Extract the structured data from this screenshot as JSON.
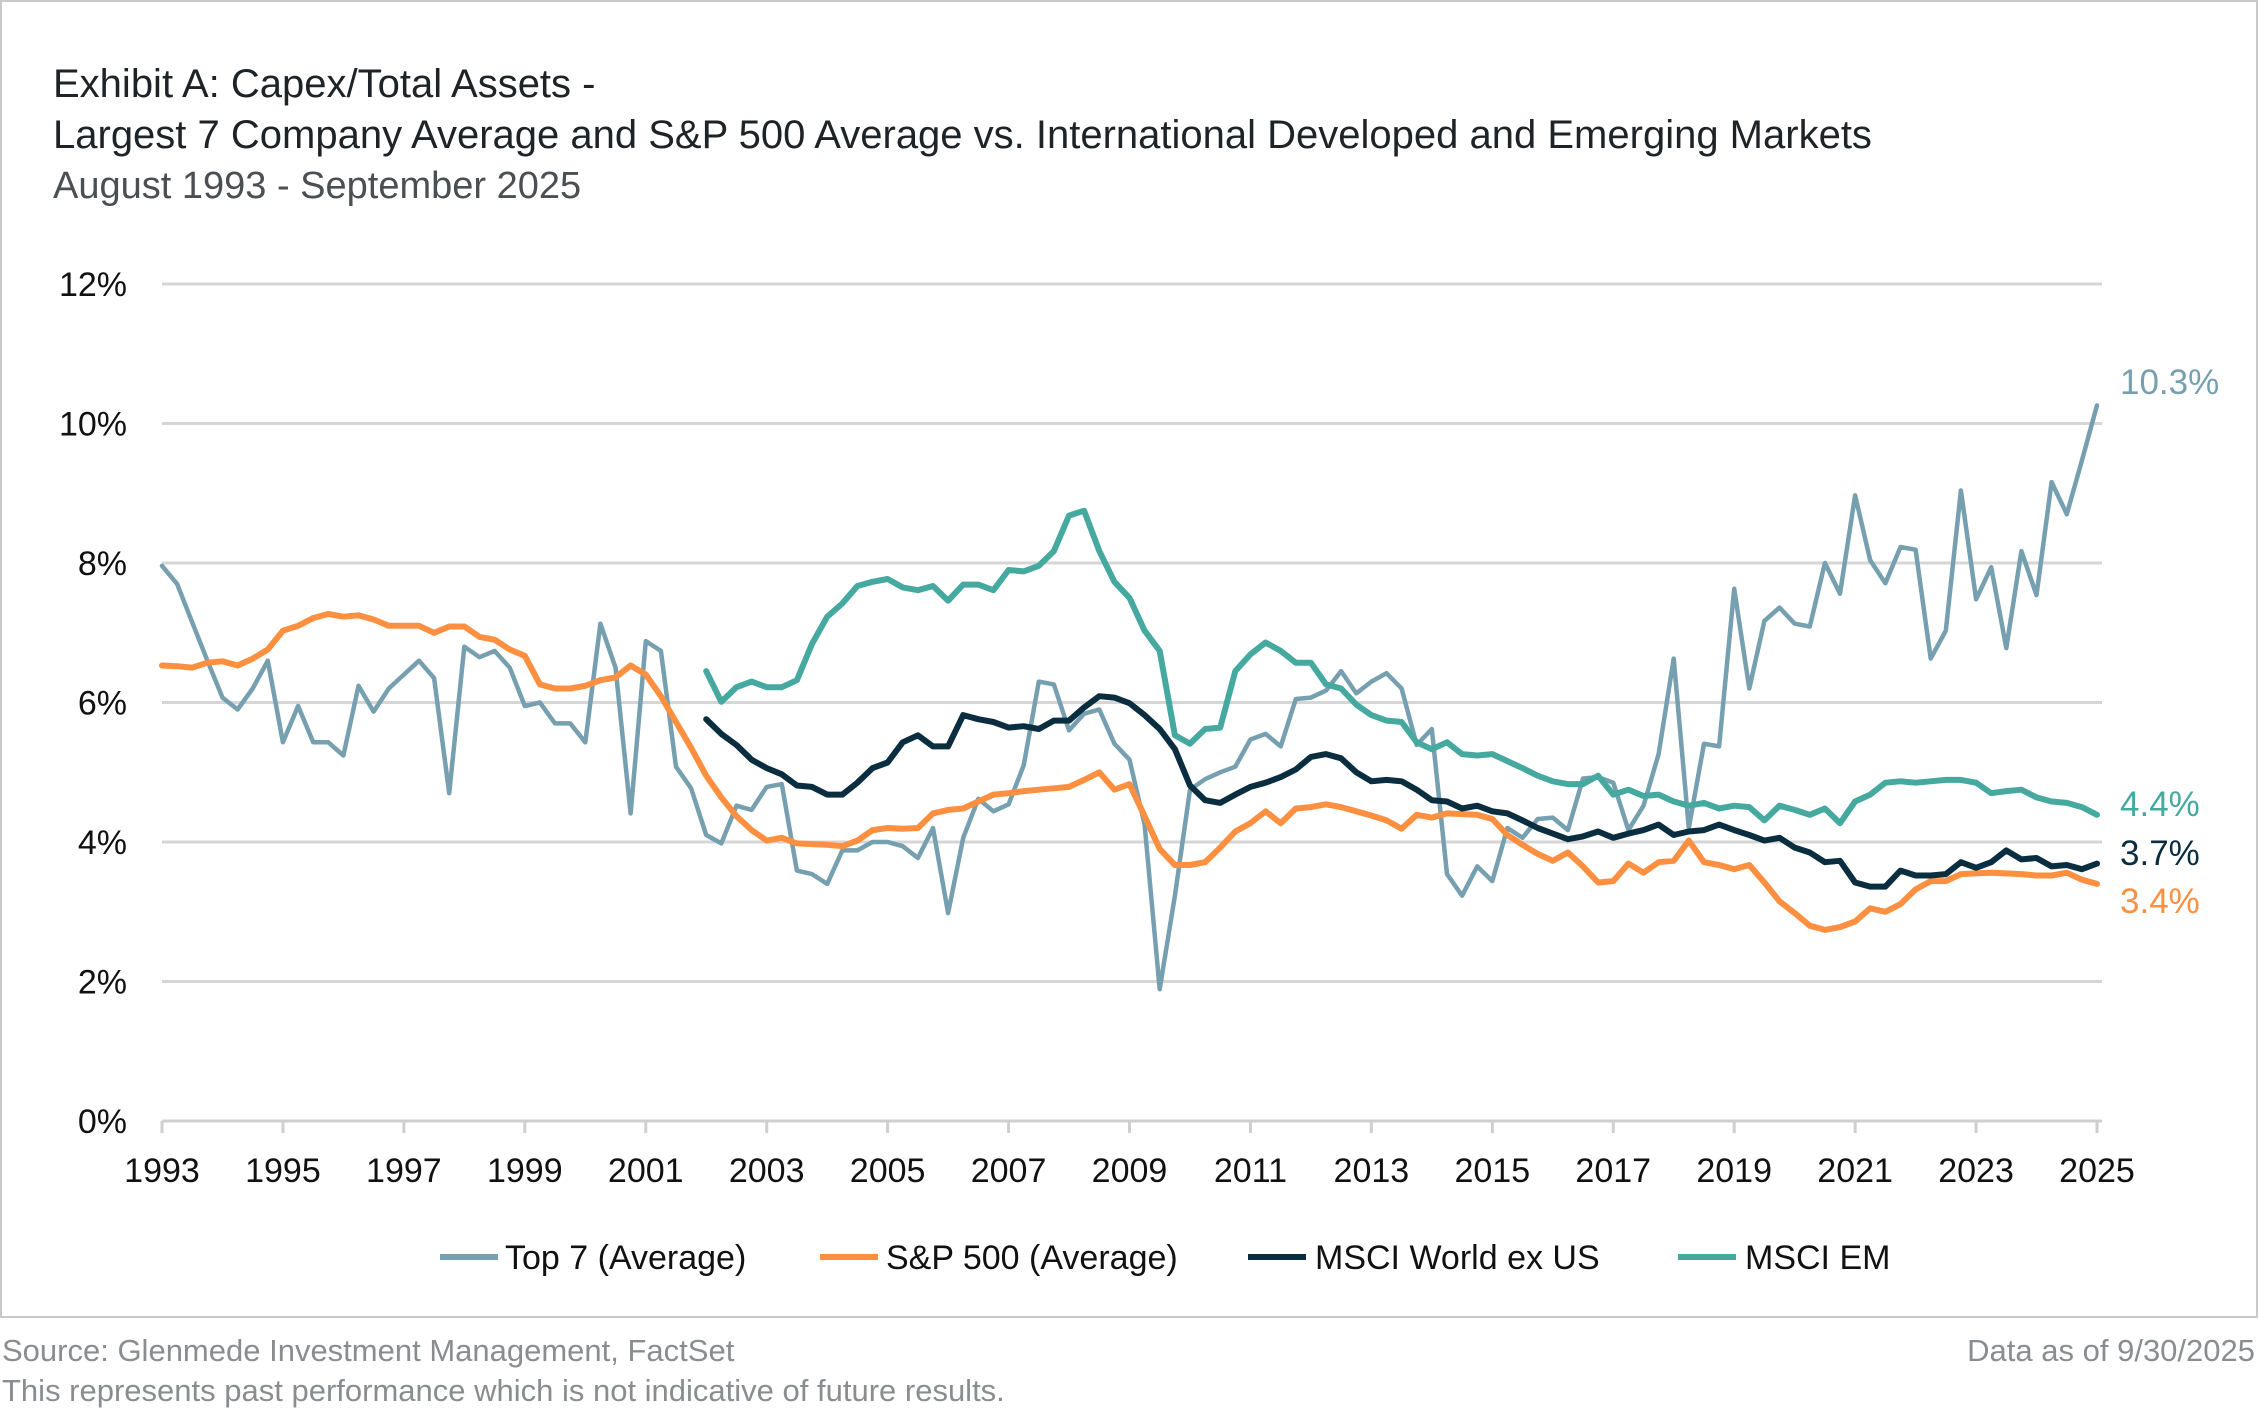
{
  "header": {
    "title_line1": "Exhibit A:  Capex/Total Assets -",
    "title_line2": "Largest 7 Company Average and S&P 500 Average vs. International Developed and Emerging Markets",
    "period": "August 1993 - September 2025"
  },
  "footer": {
    "source": "Source: Glenmede Investment Management, FactSet",
    "disclaimer": "This represents past performance which is not indicative of future results.",
    "data_as_of": "Data as of 9/30/2025"
  },
  "chart_data": {
    "type": "line",
    "title": "Capex/Total Assets",
    "xlabel": "",
    "ylabel": "",
    "frequency": "quarterly",
    "xlim": [
      1993,
      2025
    ],
    "ylim": [
      0,
      12
    ],
    "x_ticks": [
      "1993",
      "1995",
      "1997",
      "1999",
      "2001",
      "2003",
      "2005",
      "2007",
      "2009",
      "2011",
      "2013",
      "2015",
      "2017",
      "2019",
      "2021",
      "2023",
      "2025"
    ],
    "y_ticks": [
      "0%",
      "2%",
      "4%",
      "6%",
      "8%",
      "10%",
      "12%"
    ],
    "grid": "horizontal",
    "legend_position": "bottom",
    "series": [
      {
        "name": "Top 7 (Average)",
        "color": "#769fb0",
        "end_label": "10.3%",
        "values": [
          7.96,
          7.7,
          7.15,
          6.6,
          6.07,
          5.9,
          6.2,
          6.6,
          5.43,
          5.95,
          5.43,
          5.43,
          5.24,
          6.24,
          5.87,
          6.2,
          6.4,
          6.6,
          6.35,
          4.7,
          6.8,
          6.65,
          6.74,
          6.5,
          5.95,
          6.0,
          5.7,
          5.7,
          5.43,
          7.13,
          6.5,
          4.41,
          6.88,
          6.74,
          5.08,
          4.77,
          4.1,
          3.98,
          4.52,
          4.46,
          4.79,
          4.83,
          3.59,
          3.54,
          3.4,
          3.88,
          3.88,
          4.0,
          4.0,
          3.94,
          3.77,
          4.2,
          2.98,
          4.06,
          4.62,
          4.44,
          4.54,
          5.1,
          6.3,
          6.26,
          5.6,
          5.84,
          5.9,
          5.41,
          5.18,
          4.25,
          1.89,
          3.23,
          4.75,
          4.9,
          5.0,
          5.08,
          5.47,
          5.55,
          5.37,
          6.05,
          6.07,
          6.17,
          6.45,
          6.13,
          6.3,
          6.42,
          6.2,
          5.39,
          5.62,
          3.54,
          3.23,
          3.65,
          3.44,
          4.2,
          4.06,
          4.33,
          4.35,
          4.17,
          4.91,
          4.93,
          4.85,
          4.17,
          4.52,
          5.26,
          6.63,
          4.2,
          5.41,
          5.37,
          7.63,
          6.2,
          7.17,
          7.36,
          7.13,
          7.09,
          8.0,
          7.56,
          8.97,
          8.04,
          7.71,
          8.23,
          8.19,
          6.63,
          7.03,
          9.04,
          7.48,
          7.94,
          6.78,
          8.17,
          7.54,
          9.16,
          8.7,
          9.47,
          10.26
        ]
      },
      {
        "name": "S&P 500 (Average)",
        "color": "#fd9040",
        "end_label": "3.4%",
        "values": [
          6.53,
          6.52,
          6.5,
          6.57,
          6.59,
          6.53,
          6.63,
          6.76,
          7.03,
          7.1,
          7.21,
          7.27,
          7.23,
          7.25,
          7.19,
          7.1,
          7.1,
          7.1,
          7.0,
          7.09,
          7.09,
          6.94,
          6.9,
          6.76,
          6.67,
          6.26,
          6.2,
          6.2,
          6.24,
          6.32,
          6.36,
          6.53,
          6.4,
          6.09,
          5.72,
          5.35,
          4.95,
          4.64,
          4.37,
          4.17,
          4.02,
          4.06,
          3.98,
          3.97,
          3.96,
          3.94,
          4.02,
          4.17,
          4.2,
          4.19,
          4.2,
          4.41,
          4.46,
          4.48,
          4.58,
          4.68,
          4.7,
          4.73,
          4.75,
          4.77,
          4.79,
          4.89,
          5.0,
          4.75,
          4.83,
          4.37,
          3.9,
          3.67,
          3.67,
          3.71,
          3.92,
          4.15,
          4.27,
          4.44,
          4.27,
          4.48,
          4.5,
          4.54,
          4.5,
          4.44,
          4.38,
          4.31,
          4.19,
          4.39,
          4.35,
          4.41,
          4.4,
          4.39,
          4.33,
          4.1,
          3.96,
          3.83,
          3.73,
          3.85,
          3.65,
          3.42,
          3.44,
          3.69,
          3.56,
          3.71,
          3.73,
          4.02,
          3.71,
          3.67,
          3.61,
          3.67,
          3.42,
          3.15,
          2.98,
          2.8,
          2.74,
          2.78,
          2.86,
          3.05,
          3.0,
          3.11,
          3.32,
          3.44,
          3.44,
          3.54,
          3.55,
          3.56,
          3.55,
          3.54,
          3.52,
          3.52,
          3.56,
          3.46,
          3.4
        ]
      },
      {
        "name": "MSCI World ex US",
        "color": "#0a2d40",
        "end_label": "3.7%",
        "values": [
          null,
          null,
          null,
          null,
          null,
          null,
          null,
          null,
          null,
          null,
          null,
          null,
          null,
          null,
          null,
          null,
          null,
          null,
          null,
          null,
          null,
          null,
          null,
          null,
          null,
          null,
          null,
          null,
          null,
          null,
          null,
          null,
          null,
          null,
          null,
          null,
          5.76,
          5.55,
          5.39,
          5.18,
          5.06,
          4.97,
          4.81,
          4.79,
          4.68,
          4.68,
          4.85,
          5.06,
          5.14,
          5.43,
          5.53,
          5.37,
          5.37,
          5.82,
          5.76,
          5.72,
          5.64,
          5.66,
          5.62,
          5.74,
          5.74,
          5.93,
          6.09,
          6.07,
          5.99,
          5.82,
          5.62,
          5.33,
          4.81,
          4.6,
          4.56,
          4.68,
          4.79,
          4.85,
          4.93,
          5.04,
          5.22,
          5.26,
          5.2,
          5.0,
          4.87,
          4.89,
          4.87,
          4.75,
          4.6,
          4.58,
          4.48,
          4.52,
          4.44,
          4.41,
          4.31,
          4.2,
          4.12,
          4.04,
          4.08,
          4.15,
          4.06,
          4.12,
          4.17,
          4.25,
          4.1,
          4.15,
          4.17,
          4.25,
          4.17,
          4.1,
          4.02,
          4.06,
          3.92,
          3.85,
          3.71,
          3.73,
          3.42,
          3.36,
          3.36,
          3.59,
          3.52,
          3.52,
          3.54,
          3.71,
          3.63,
          3.71,
          3.88,
          3.75,
          3.77,
          3.65,
          3.67,
          3.61,
          3.69
        ]
      },
      {
        "name": "MSCI EM",
        "color": "#45a9a0",
        "end_label": "4.4%",
        "values": [
          null,
          null,
          null,
          null,
          null,
          null,
          null,
          null,
          null,
          null,
          null,
          null,
          null,
          null,
          null,
          null,
          null,
          null,
          null,
          null,
          null,
          null,
          null,
          null,
          null,
          null,
          null,
          null,
          null,
          null,
          null,
          null,
          null,
          null,
          null,
          null,
          6.45,
          6.01,
          6.22,
          6.3,
          6.22,
          6.22,
          6.32,
          6.84,
          7.23,
          7.42,
          7.67,
          7.73,
          7.77,
          7.65,
          7.61,
          7.67,
          7.46,
          7.69,
          7.69,
          7.61,
          7.9,
          7.88,
          7.96,
          8.17,
          8.68,
          8.75,
          8.17,
          7.73,
          7.5,
          7.03,
          6.74,
          5.53,
          5.41,
          5.62,
          5.64,
          6.45,
          6.69,
          6.86,
          6.74,
          6.57,
          6.57,
          6.26,
          6.2,
          5.97,
          5.82,
          5.74,
          5.72,
          5.43,
          5.33,
          5.43,
          5.26,
          5.24,
          5.26,
          5.16,
          5.06,
          4.95,
          4.87,
          4.83,
          4.83,
          4.95,
          4.68,
          4.75,
          4.66,
          4.68,
          4.58,
          4.52,
          4.56,
          4.48,
          4.52,
          4.5,
          4.31,
          4.52,
          4.46,
          4.39,
          4.48,
          4.27,
          4.58,
          4.68,
          4.85,
          4.87,
          4.85,
          4.87,
          4.89,
          4.89,
          4.85,
          4.7,
          4.73,
          4.75,
          4.64,
          4.58,
          4.56,
          4.5,
          4.39
        ]
      }
    ]
  }
}
